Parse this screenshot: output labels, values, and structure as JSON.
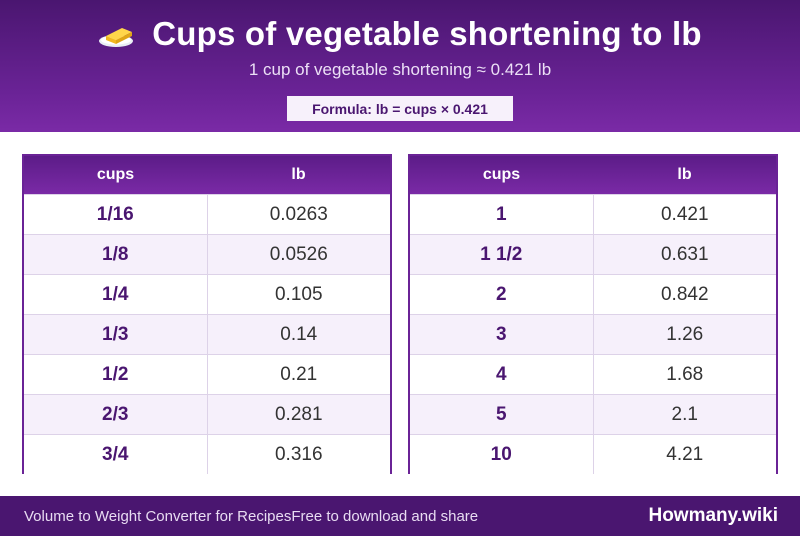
{
  "header": {
    "icon": "butter-stick-icon",
    "title": "Cups of vegetable shortening to lb",
    "subtitle": "1 cup of vegetable shortening ≈ 0.421 lb",
    "formula": "Formula: lb = cups × 0.421"
  },
  "tables": {
    "left": {
      "col_from": "cups",
      "col_to": "lb",
      "rows": [
        {
          "from": "1/16",
          "to": "0.0263"
        },
        {
          "from": "1/8",
          "to": "0.0526"
        },
        {
          "from": "1/4",
          "to": "0.105"
        },
        {
          "from": "1/3",
          "to": "0.14"
        },
        {
          "from": "1/2",
          "to": "0.21"
        },
        {
          "from": "2/3",
          "to": "0.281"
        },
        {
          "from": "3/4",
          "to": "0.316"
        }
      ]
    },
    "right": {
      "col_from": "cups",
      "col_to": "lb",
      "rows": [
        {
          "from": "1",
          "to": "0.421"
        },
        {
          "from": "1 1/2",
          "to": "0.631"
        },
        {
          "from": "2",
          "to": "0.842"
        },
        {
          "from": "3",
          "to": "1.26"
        },
        {
          "from": "4",
          "to": "1.68"
        },
        {
          "from": "5",
          "to": "2.1"
        },
        {
          "from": "10",
          "to": "4.21"
        }
      ]
    }
  },
  "footer": {
    "left_text": "Volume to Weight Converter for RecipesFree to download and share",
    "brand": "Howmany.wiki"
  },
  "colors": {
    "brand_purple": "#6a2396",
    "dark_purple": "#4a1670"
  }
}
